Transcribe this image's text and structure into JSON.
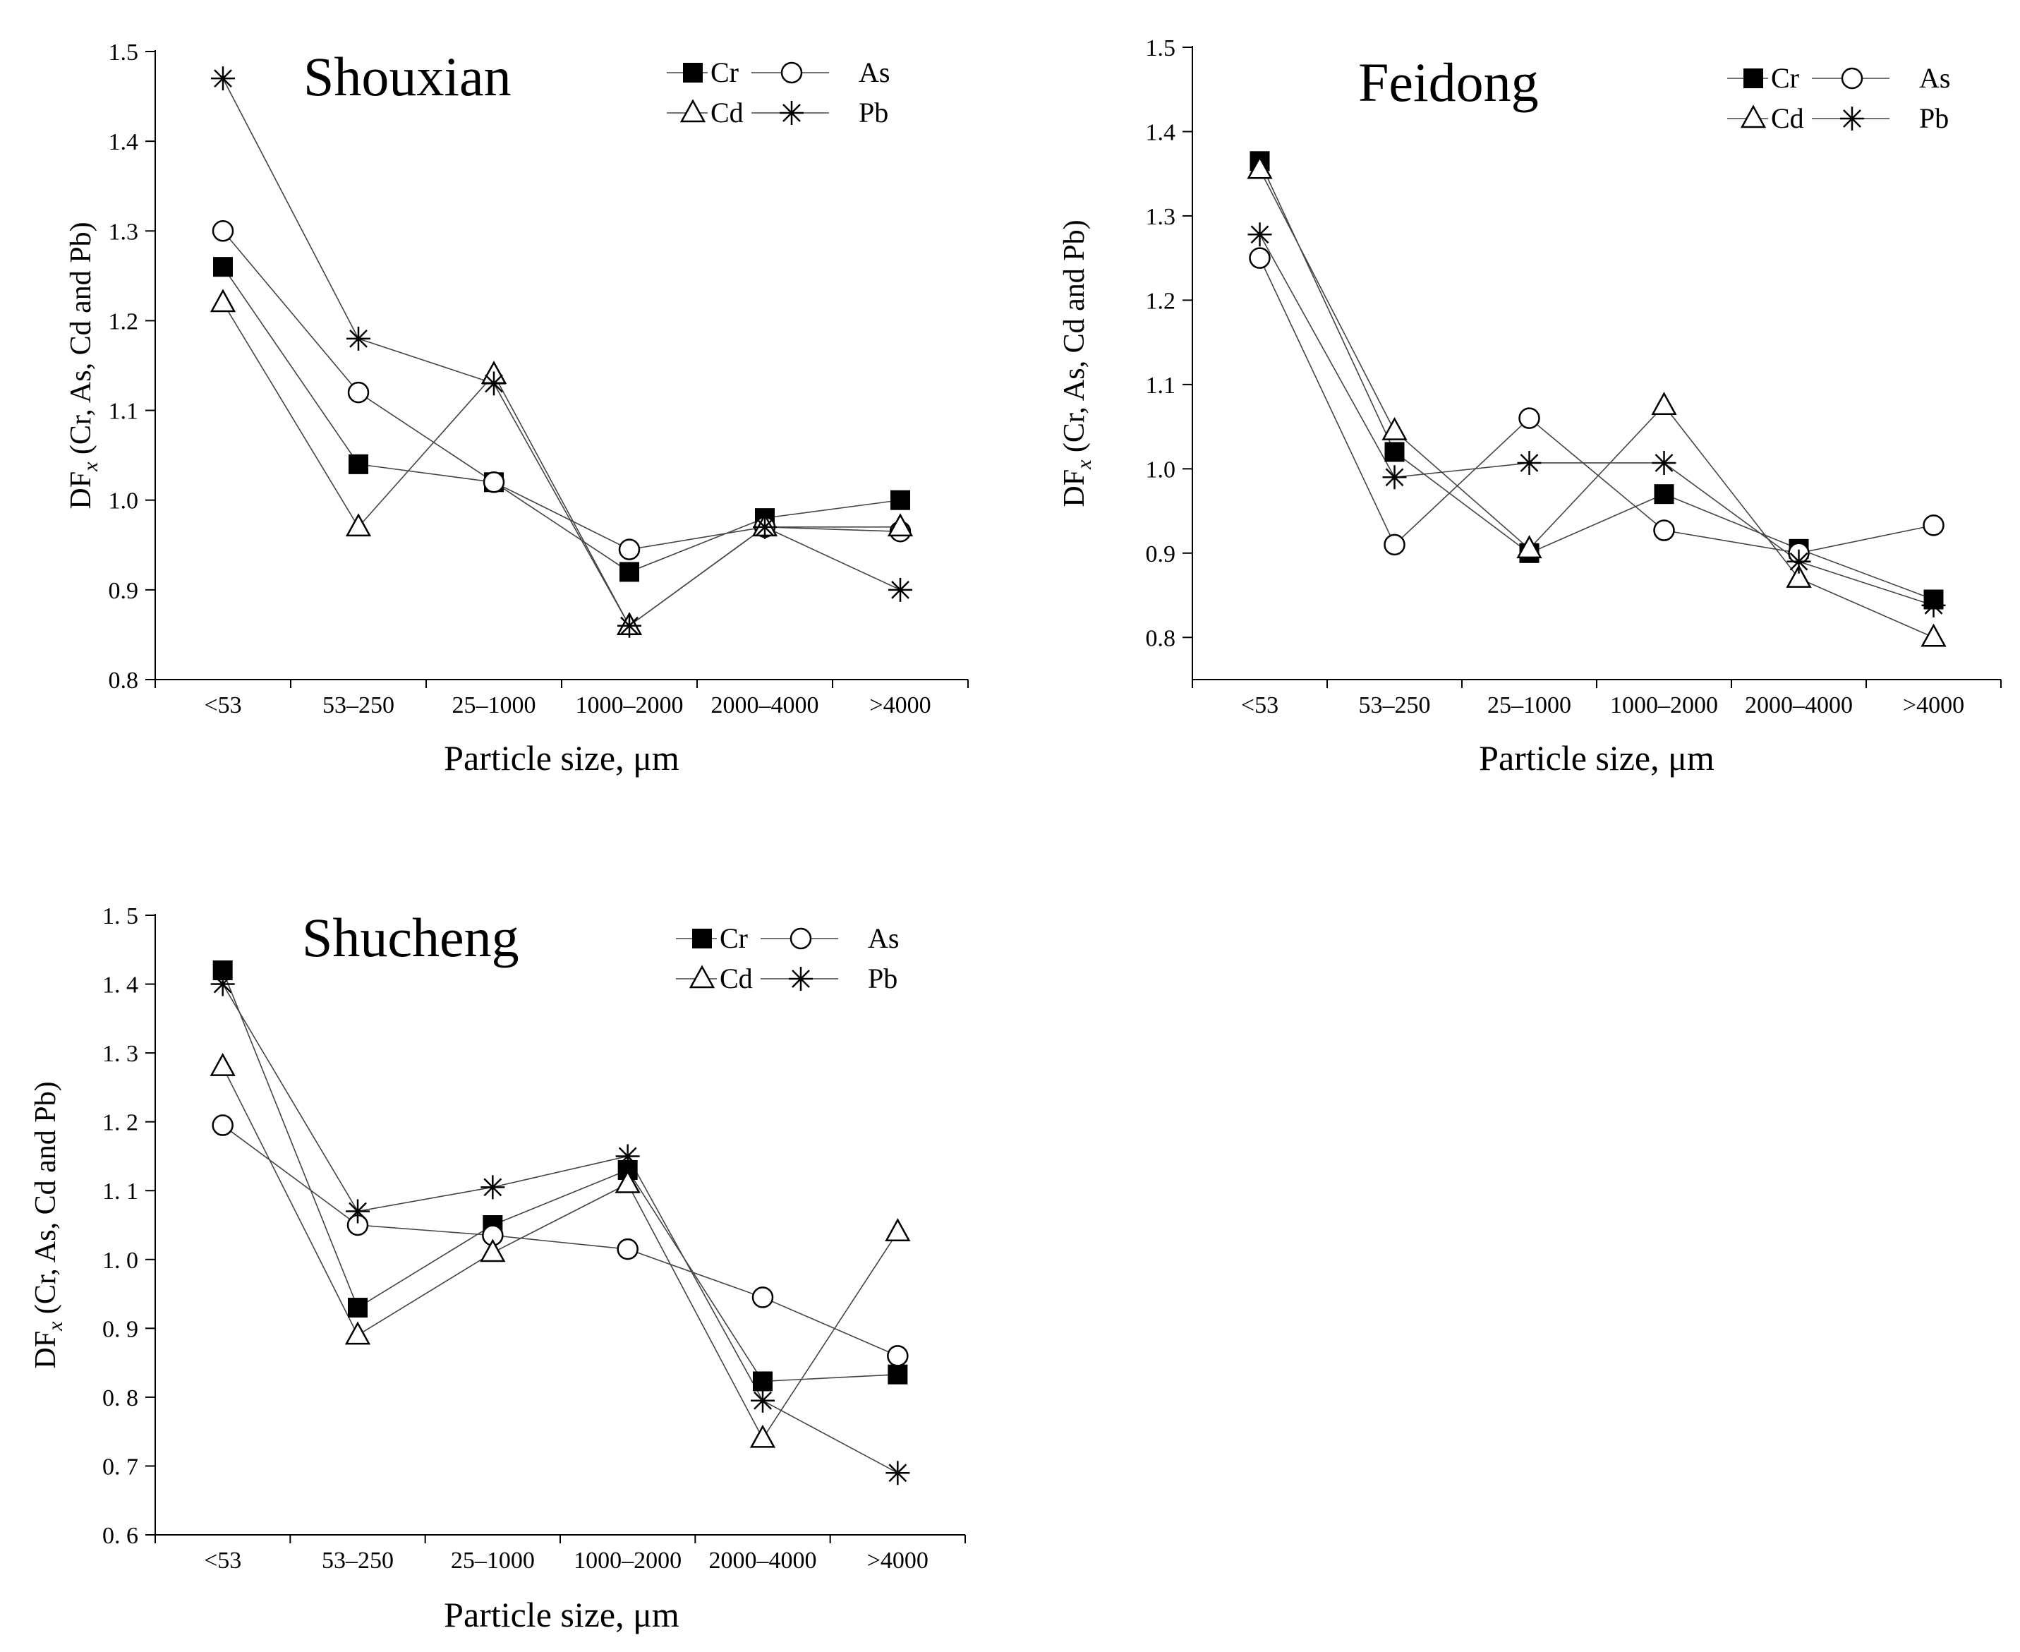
{
  "chart_data": [
    {
      "type": "line",
      "title": "Shouxian",
      "categories": [
        "<53",
        "53–250",
        "25–1000",
        "1000–2000",
        "2000–4000",
        ">4000"
      ],
      "xlabel": "Particle size, μm",
      "ylabel": {
        "prefix": "DF",
        "sub": "x",
        "suffix": " (Cr, As, Cd and Pb)"
      },
      "yticks": [
        "0.8",
        "0.9",
        "1.0",
        "1.1",
        "1.2",
        "1.3",
        "1.4",
        "1.5"
      ],
      "ylim": [
        0.8,
        1.5
      ],
      "legend": [
        [
          "Cr",
          "As"
        ],
        [
          "Cd",
          "Pb"
        ]
      ],
      "legend_position": "top-right",
      "series": [
        {
          "name": "Cr",
          "marker": "filled-square",
          "values": [
            1.26,
            1.04,
            1.02,
            0.92,
            0.98,
            1.0
          ]
        },
        {
          "name": "As",
          "marker": "open-circle",
          "values": [
            1.3,
            1.12,
            1.02,
            0.945,
            0.97,
            0.965
          ]
        },
        {
          "name": "Cd",
          "marker": "open-triangle",
          "values": [
            1.22,
            0.97,
            1.14,
            0.86,
            0.97,
            0.97
          ]
        },
        {
          "name": "Pb",
          "marker": "asterisk",
          "values": [
            1.47,
            1.18,
            1.13,
            0.86,
            0.97,
            0.9
          ]
        }
      ]
    },
    {
      "type": "line",
      "title": "Feidong",
      "categories": [
        "<53",
        "53–250",
        "25–1000",
        "1000–2000",
        "2000–4000",
        ">4000"
      ],
      "xlabel": "Particle size, μm",
      "ylabel": {
        "prefix": "DF",
        "sub": "x",
        "suffix": " (Cr, As, Cd and Pb)"
      },
      "yticks": [
        "0.8",
        "0.9",
        "1.0",
        "1.1",
        "1.2",
        "1.3",
        "1.4",
        "1.5"
      ],
      "ylim": [
        0.75,
        1.5
      ],
      "legend": [
        [
          "Cr",
          "As"
        ],
        [
          "Cd",
          "Pb"
        ]
      ],
      "legend_position": "top-right",
      "series": [
        {
          "name": "Cr",
          "marker": "filled-square",
          "values": [
            1.365,
            1.02,
            0.9,
            0.97,
            0.905,
            0.845
          ]
        },
        {
          "name": "As",
          "marker": "open-circle",
          "values": [
            1.25,
            0.91,
            1.06,
            0.927,
            0.9,
            0.933
          ]
        },
        {
          "name": "Cd",
          "marker": "open-triangle",
          "values": [
            1.355,
            1.045,
            0.905,
            1.075,
            0.87,
            0.8
          ]
        },
        {
          "name": "Pb",
          "marker": "asterisk",
          "values": [
            1.278,
            0.99,
            1.007,
            1.007,
            0.89,
            0.838
          ]
        }
      ]
    },
    {
      "type": "line",
      "title": "Shucheng",
      "categories": [
        "<53",
        "53–250",
        "25–1000",
        "1000–2000",
        "2000–4000",
        ">4000"
      ],
      "xlabel": "Particle size, μm",
      "ylabel": {
        "prefix": "DF",
        "sub": "x",
        "suffix": " (Cr, As, Cd and Pb)"
      },
      "yticks": [
        "0. 6",
        "0. 7",
        "0. 8",
        "0. 9",
        "1. 0",
        "1. 1",
        "1. 2",
        "1. 3",
        "1. 4",
        "1. 5"
      ],
      "ylim": [
        0.6,
        1.5
      ],
      "legend": [
        [
          "Cr",
          "As"
        ],
        [
          "Cd",
          "Pb"
        ]
      ],
      "legend_position": "top-right",
      "series": [
        {
          "name": "Cr",
          "marker": "filled-square",
          "values": [
            1.42,
            0.93,
            1.05,
            1.13,
            0.823,
            0.833
          ]
        },
        {
          "name": "As",
          "marker": "open-circle",
          "values": [
            1.195,
            1.05,
            1.035,
            1.015,
            0.945,
            0.86
          ]
        },
        {
          "name": "Cd",
          "marker": "open-triangle",
          "values": [
            1.28,
            0.89,
            1.01,
            1.11,
            0.74,
            1.04
          ]
        },
        {
          "name": "Pb",
          "marker": "asterisk",
          "values": [
            1.4,
            1.07,
            1.105,
            1.15,
            0.795,
            0.69
          ]
        }
      ]
    }
  ]
}
